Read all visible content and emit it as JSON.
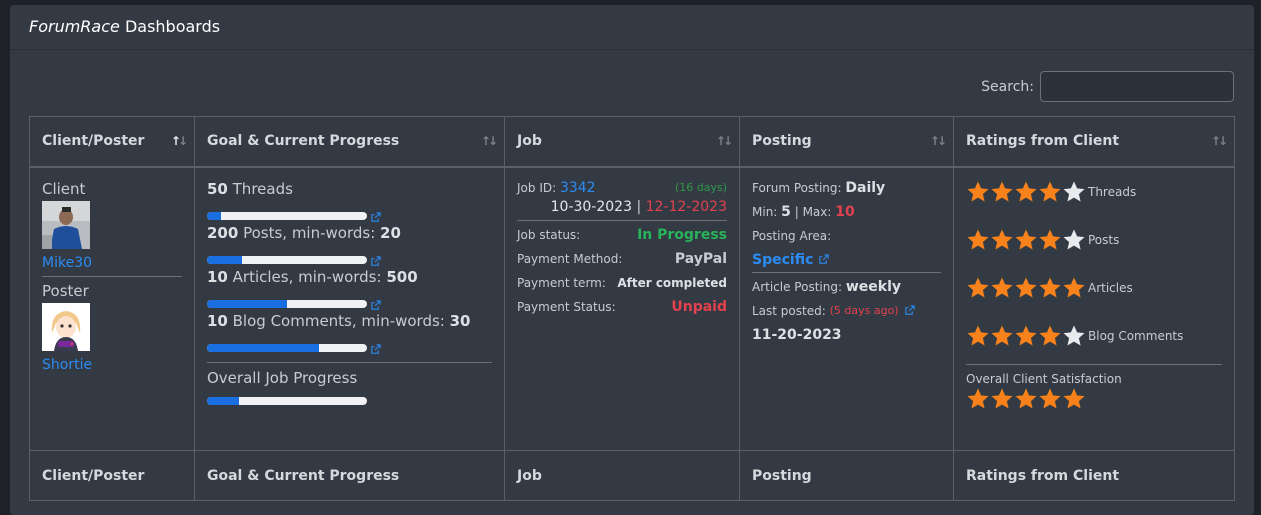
{
  "panel": {
    "title_italic": "ForumRace",
    "title_rest": " Dashboards"
  },
  "search": {
    "label": "Search:",
    "value": ""
  },
  "columns": [
    "Client/Poster",
    "Goal & Current Progress",
    "Job",
    "Posting",
    "Ratings from Client"
  ],
  "client": {
    "client_role": "Client",
    "client_name": "Mike30",
    "client_avatar": "photo-avatar",
    "poster_role": "Poster",
    "poster_name": "Shortie",
    "poster_avatar": "cartoon-avatar"
  },
  "goals": [
    {
      "count": "50",
      "text": " Threads",
      "words_label": "",
      "words": "",
      "progress": 0.09
    },
    {
      "count": "200",
      "text": " Posts, min-words: ",
      "words": "20",
      "progress": 0.22
    },
    {
      "count": "10",
      "text": " Articles, min-words: ",
      "words": "500",
      "progress": 0.5
    },
    {
      "count": "10",
      "text": " Blog Comments, min-words: ",
      "words": "30",
      "progress": 0.7
    }
  ],
  "overall": {
    "label": "Overall Job Progress",
    "progress": 0.2
  },
  "job": {
    "id_label": "Job ID: ",
    "id": "3342",
    "days": "(16 days)",
    "start": "10-30-2023",
    "sep": " | ",
    "end": "12-12-2023",
    "status_label": "Job status:",
    "status": "In Progress",
    "method_label": "Payment Method:",
    "method": "PayPal",
    "term_label": "Payment term:",
    "term": "After completed",
    "pstatus_label": "Payment Status:",
    "pstatus": "Unpaid"
  },
  "posting": {
    "forum_label": "Forum Posting: ",
    "forum": "Daily",
    "min_label": "Min: ",
    "min": "5",
    "max_label": " | Max: ",
    "max": "10",
    "area_label": "Posting Area:",
    "area": "Specific",
    "article_label": "Article Posting: ",
    "article": "weekly",
    "last_label": "Last posted: ",
    "last_ago": "(5 days ago)",
    "last_date": "11-20-2023"
  },
  "ratings": [
    {
      "label": "Threads",
      "stars": 4
    },
    {
      "label": "Posts",
      "stars": 4
    },
    {
      "label": "Articles",
      "stars": 5
    },
    {
      "label": "Blog Comments",
      "stars": 4
    }
  ],
  "satisfaction": {
    "label": "Overall Client Satisfaction",
    "stars": 5
  },
  "colors": {
    "star_on": "#f7821b",
    "star_off": "#e8eaed",
    "link": "#2b8cf3",
    "progress": "#1a6fe0"
  }
}
